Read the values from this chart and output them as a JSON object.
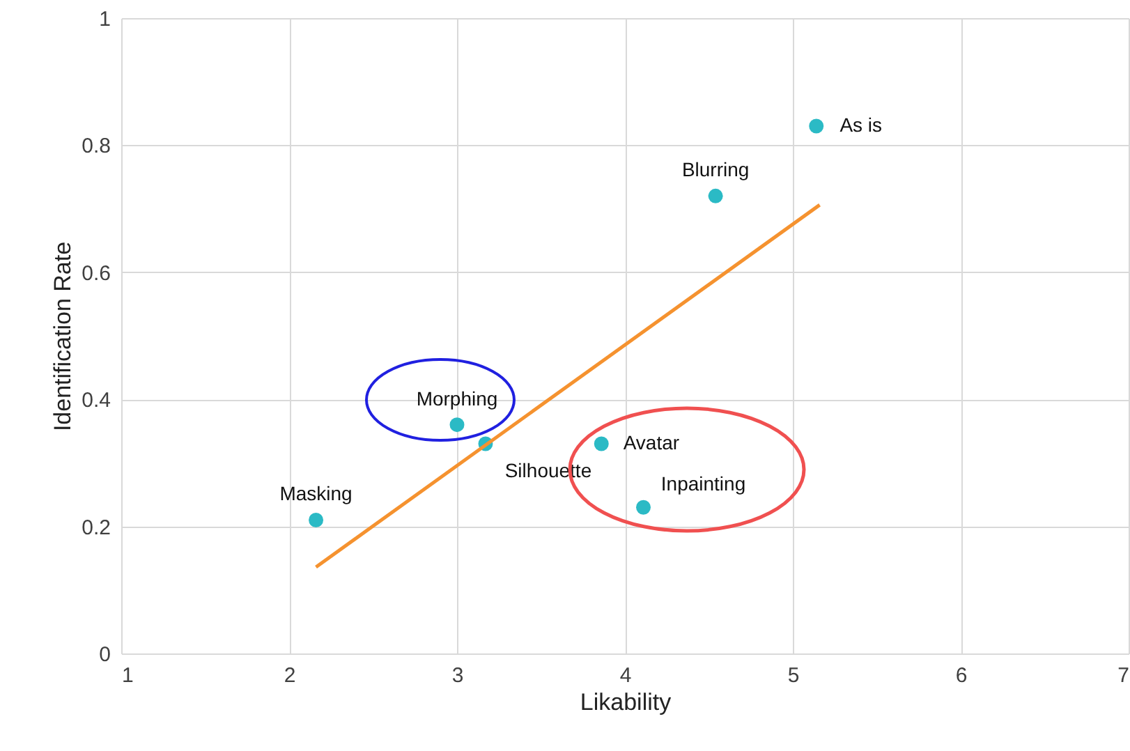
{
  "chart_data": {
    "type": "scatter",
    "xlabel": "Likability",
    "ylabel": "Identification Rate",
    "xlim": [
      1,
      7
    ],
    "xticks": [
      1,
      2,
      3,
      4,
      5,
      6,
      7
    ],
    "ylim": [
      0,
      1
    ],
    "yticks": [
      0,
      0.2,
      0.4,
      0.6,
      0.8,
      1
    ],
    "grid": true,
    "series": [
      {
        "type": "scatter",
        "marker": "circle",
        "color": "#2bbac5",
        "x": [
          5.14,
          4.54,
          3.0,
          3.17,
          3.86,
          4.11,
          2.16
        ],
        "values": [
          0.83,
          0.72,
          0.36,
          0.33,
          0.33,
          0.23,
          0.21
        ]
      },
      {
        "type": "line",
        "color": "#f5922f",
        "x": [
          2.16,
          5.16
        ],
        "values": [
          0.136,
          0.706
        ]
      }
    ],
    "annotations": [
      {
        "text": "As is",
        "x": 5.14,
        "y": 0.83
      },
      {
        "text": "Blurring",
        "x": 4.54,
        "y": 0.72
      },
      {
        "text": "Morphing",
        "x": 3.0,
        "y": 0.36
      },
      {
        "text": "Silhouette",
        "x": 3.17,
        "y": 0.33
      },
      {
        "text": "Avatar",
        "x": 3.86,
        "y": 0.33
      },
      {
        "text": "Inpainting",
        "x": 4.11,
        "y": 0.23
      },
      {
        "text": "Masking",
        "x": 2.16,
        "y": 0.21
      }
    ]
  }
}
